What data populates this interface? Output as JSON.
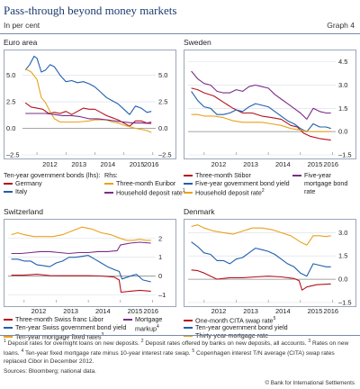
{
  "header": {
    "title": "Pass-through beyond money markets",
    "subtitle": "In per cent",
    "graph_no": "Graph 4"
  },
  "chart_data": [
    {
      "type": "line",
      "panel_title": "Euro area",
      "x_ticks": [
        "2012",
        "2013",
        "2014",
        "2015",
        "2016"
      ],
      "y_ticks_left": [
        "5.0",
        "2.5",
        "0.0",
        "–2.5"
      ],
      "y_ticks_right": [
        "5.0",
        "2.5",
        "0.0",
        "–2.5"
      ],
      "ylim": [
        -2.5,
        7
      ],
      "xlim": [
        2011.5,
        2016.1
      ],
      "legend_headers": [
        "Ten-year government bonds (lhs):",
        "Rhs:"
      ],
      "series": [
        {
          "name": "Germany",
          "color": "#b5121b",
          "x": [
            2011.6,
            2011.8,
            2012.0,
            2012.2,
            2012.4,
            2012.6,
            2012.8,
            2013.0,
            2013.2,
            2013.4,
            2013.6,
            2013.8,
            2014.0,
            2014.2,
            2014.4,
            2014.6,
            2014.8,
            2015.0,
            2015.2,
            2015.4,
            2015.6,
            2015.8,
            2015.95
          ],
          "values": [
            2.4,
            2.0,
            1.9,
            1.8,
            1.4,
            1.5,
            1.4,
            1.6,
            1.3,
            1.6,
            1.9,
            1.8,
            1.8,
            1.5,
            1.2,
            1.0,
            0.8,
            0.5,
            0.2,
            0.7,
            0.7,
            0.5,
            0.6
          ]
        },
        {
          "name": "Italy",
          "color": "#1f5fae",
          "x": [
            2011.6,
            2011.75,
            2011.9,
            2012.0,
            2012.15,
            2012.3,
            2012.45,
            2012.6,
            2012.8,
            2013.0,
            2013.2,
            2013.4,
            2013.6,
            2013.8,
            2014.0,
            2014.2,
            2014.4,
            2014.6,
            2014.8,
            2015.0,
            2015.2,
            2015.4,
            2015.6,
            2015.8,
            2015.95
          ],
          "values": [
            5.5,
            6.0,
            6.8,
            6.6,
            5.3,
            5.5,
            6.0,
            5.8,
            5.0,
            4.4,
            4.5,
            4.3,
            4.4,
            4.2,
            3.9,
            3.4,
            2.9,
            2.6,
            2.3,
            1.8,
            1.3,
            2.1,
            1.9,
            1.5,
            1.6
          ]
        },
        {
          "name": "Three-month Euribor",
          "color": "#e8a21c",
          "x": [
            2011.6,
            2011.8,
            2012.0,
            2012.15,
            2012.3,
            2012.45,
            2012.6,
            2012.8,
            2013.0,
            2013.4,
            2013.8,
            2014.0,
            2014.4,
            2014.6,
            2014.8,
            2015.0,
            2015.4,
            2015.8,
            2015.95
          ],
          "values": [
            5.6,
            5.3,
            4.6,
            2.9,
            2.4,
            1.6,
            0.9,
            0.6,
            0.6,
            0.6,
            0.7,
            0.8,
            0.8,
            0.6,
            0.5,
            0.3,
            0.0,
            -0.2,
            -0.4
          ]
        },
        {
          "name": "Household deposit rate",
          "note_ref": "1",
          "color": "#7a2d86",
          "x": [
            2011.6,
            2011.8,
            2012.0,
            2012.3,
            2012.6,
            2012.9,
            2013.2,
            2013.5,
            2013.8,
            2014.1,
            2014.4,
            2014.7,
            2015.0,
            2015.3,
            2015.6,
            2015.95
          ],
          "values": [
            1.4,
            1.4,
            1.4,
            1.4,
            1.3,
            1.2,
            1.2,
            1.1,
            0.9,
            0.9,
            0.8,
            0.7,
            0.6,
            0.5,
            0.5,
            0.45
          ]
        }
      ]
    },
    {
      "type": "line",
      "panel_title": "Sweden",
      "x_ticks": [
        "2012",
        "2013",
        "2014",
        "2015",
        "2016"
      ],
      "y_ticks_right": [
        "4.5",
        "3.0",
        "1.5",
        "0.0",
        "–1.5"
      ],
      "ylim": [
        -1.5,
        5
      ],
      "xlim": [
        2011.5,
        2016.1
      ],
      "series": [
        {
          "name": "Three-month Stibor",
          "color": "#b5121b",
          "x": [
            2011.6,
            2011.8,
            2012.0,
            2012.3,
            2012.6,
            2012.9,
            2013.2,
            2013.5,
            2013.8,
            2014.1,
            2014.4,
            2014.7,
            2014.9,
            2015.1,
            2015.3,
            2015.6,
            2015.95
          ],
          "values": [
            2.8,
            2.7,
            2.5,
            2.3,
            1.9,
            1.5,
            1.2,
            1.2,
            1.0,
            0.9,
            0.8,
            0.4,
            0.3,
            -0.1,
            -0.3,
            -0.45,
            -0.55
          ]
        },
        {
          "name": "Five-year government bond yield",
          "color": "#1f5fae",
          "x": [
            2011.6,
            2011.8,
            2012.0,
            2012.2,
            2012.4,
            2012.6,
            2012.8,
            2013.0,
            2013.2,
            2013.4,
            2013.6,
            2013.8,
            2014.0,
            2014.2,
            2014.4,
            2014.6,
            2014.8,
            2015.0,
            2015.2,
            2015.4,
            2015.6,
            2015.8,
            2015.95
          ],
          "values": [
            2.6,
            2.0,
            1.6,
            1.5,
            1.1,
            1.1,
            1.2,
            1.4,
            1.3,
            1.6,
            1.8,
            1.7,
            1.6,
            1.3,
            1.0,
            0.7,
            0.5,
            0.2,
            0.0,
            0.5,
            0.3,
            0.3,
            0.2
          ]
        },
        {
          "name": "Household deposit rate",
          "note_ref": "2",
          "color": "#e8a21c",
          "x": [
            2011.6,
            2011.8,
            2012.0,
            2012.3,
            2012.6,
            2012.9,
            2013.2,
            2013.5,
            2013.8,
            2014.1,
            2014.4,
            2014.7,
            2015.0,
            2015.3,
            2015.6,
            2015.95
          ],
          "values": [
            1.1,
            1.1,
            1.0,
            1.0,
            0.9,
            0.7,
            0.6,
            0.6,
            0.6,
            0.5,
            0.4,
            0.2,
            0.1,
            0.0,
            0.0,
            0.0
          ]
        },
        {
          "name": "Five-year mortgage bond rate",
          "color": "#7a2d86",
          "x": [
            2011.6,
            2011.8,
            2012.0,
            2012.2,
            2012.4,
            2012.6,
            2012.8,
            2013.0,
            2013.2,
            2013.4,
            2013.6,
            2013.8,
            2014.0,
            2014.2,
            2014.4,
            2014.6,
            2014.8,
            2015.0,
            2015.2,
            2015.4,
            2015.6,
            2015.8,
            2015.95
          ],
          "values": [
            3.9,
            3.4,
            3.1,
            3.0,
            2.6,
            2.5,
            2.5,
            2.7,
            2.6,
            2.9,
            3.0,
            2.9,
            2.8,
            2.4,
            2.1,
            1.8,
            1.5,
            1.2,
            0.8,
            1.5,
            1.3,
            1.2,
            1.2
          ]
        }
      ]
    },
    {
      "type": "line",
      "panel_title": "Switzerland",
      "x_ticks": [
        "2012",
        "2013",
        "2014",
        "2015",
        "2016"
      ],
      "y_ticks_right": [
        "2",
        "1",
        "0",
        "–1"
      ],
      "ylim": [
        -1.4,
        2.8
      ],
      "xlim": [
        2011.5,
        2016.1
      ],
      "series": [
        {
          "name": "Three-month Swiss franc Libor",
          "color": "#b5121b",
          "x": [
            2011.6,
            2011.8,
            2012.0,
            2012.4,
            2012.8,
            2013.2,
            2013.6,
            2014.0,
            2014.4,
            2014.8,
            2014.96,
            2015.02,
            2015.3,
            2015.6,
            2015.95
          ],
          "values": [
            0.05,
            0.05,
            0.05,
            0.1,
            0.03,
            0.02,
            0.02,
            0.02,
            0.01,
            -0.05,
            -0.2,
            -0.85,
            -0.8,
            -0.75,
            -0.8
          ]
        },
        {
          "name": "Ten-year Swiss government bond yield",
          "color": "#1f5fae",
          "x": [
            2011.6,
            2011.8,
            2012.0,
            2012.2,
            2012.4,
            2012.6,
            2012.8,
            2013.0,
            2013.2,
            2013.4,
            2013.6,
            2013.8,
            2014.0,
            2014.2,
            2014.4,
            2014.6,
            2014.8,
            2014.96,
            2015.05,
            2015.3,
            2015.5,
            2015.7,
            2015.95
          ],
          "values": [
            0.9,
            0.9,
            0.8,
            0.8,
            0.6,
            0.55,
            0.5,
            0.7,
            0.8,
            1.0,
            1.0,
            1.05,
            1.1,
            0.9,
            0.7,
            0.5,
            0.35,
            0.25,
            -0.15,
            0.0,
            0.1,
            -0.2,
            -0.3
          ]
        },
        {
          "name": "Ten-year mortgage fixed rates",
          "note_ref": "3",
          "color": "#e8a21c",
          "x": [
            2011.6,
            2011.8,
            2012.0,
            2012.3,
            2012.6,
            2012.9,
            2013.2,
            2013.5,
            2013.8,
            2014.1,
            2014.4,
            2014.7,
            2015.0,
            2015.2,
            2015.4,
            2015.6,
            2015.8,
            2015.95
          ],
          "values": [
            2.2,
            2.3,
            2.2,
            2.1,
            2.1,
            2.1,
            2.2,
            2.4,
            2.6,
            2.5,
            2.3,
            2.2,
            2.0,
            1.9,
            1.9,
            1.95,
            1.9,
            1.9
          ]
        },
        {
          "name": "Mortgage markup",
          "note_ref": "4",
          "color": "#7a2d86",
          "x": [
            2011.6,
            2011.9,
            2012.2,
            2012.5,
            2012.8,
            2013.1,
            2013.4,
            2013.7,
            2014.0,
            2014.3,
            2014.6,
            2014.9,
            2015.0,
            2015.3,
            2015.6,
            2015.95
          ],
          "values": [
            1.2,
            1.2,
            1.25,
            1.3,
            1.3,
            1.25,
            1.2,
            1.25,
            1.25,
            1.3,
            1.3,
            1.35,
            1.65,
            1.75,
            1.8,
            1.75
          ]
        }
      ]
    },
    {
      "type": "line",
      "panel_title": "Denmark",
      "x_ticks": [
        "2012",
        "2013",
        "2014",
        "2015",
        "2016"
      ],
      "y_ticks_right": [
        "3.0",
        "1.5",
        "0.0",
        "–1.5"
      ],
      "ylim": [
        -1.5,
        3.6
      ],
      "xlim": [
        2011.5,
        2016.1
      ],
      "series": [
        {
          "name": "One-month CITA swap rate",
          "note_ref": "5",
          "color": "#b5121b",
          "x": [
            2011.6,
            2011.8,
            2012.0,
            2012.4,
            2012.8,
            2013.2,
            2013.6,
            2014.0,
            2014.4,
            2014.8,
            2014.96,
            2015.05,
            2015.2,
            2015.5,
            2015.95
          ],
          "values": [
            0.6,
            0.55,
            0.4,
            0.0,
            0.1,
            0.1,
            0.15,
            0.2,
            0.15,
            0.05,
            -0.1,
            -0.7,
            -0.5,
            -0.35,
            -0.3
          ]
        },
        {
          "name": "Ten-year government bond yield",
          "color": "#1f5fae",
          "x": [
            2011.6,
            2011.8,
            2012.0,
            2012.2,
            2012.4,
            2012.6,
            2012.8,
            2013.0,
            2013.2,
            2013.4,
            2013.6,
            2013.8,
            2014.0,
            2014.2,
            2014.4,
            2014.6,
            2014.8,
            2015.0,
            2015.2,
            2015.4,
            2015.6,
            2015.8,
            2015.95
          ],
          "values": [
            2.4,
            2.1,
            1.7,
            1.6,
            1.2,
            1.2,
            1.0,
            1.3,
            1.4,
            1.7,
            2.0,
            1.9,
            1.8,
            1.6,
            1.3,
            1.0,
            0.8,
            0.4,
            0.2,
            1.0,
            0.9,
            0.8,
            0.8
          ]
        },
        {
          "name": "Thirty-year mortgage rate",
          "color": "#e8a21c",
          "x": [
            2011.6,
            2011.8,
            2012.0,
            2012.3,
            2012.6,
            2012.9,
            2013.2,
            2013.5,
            2013.8,
            2014.1,
            2014.4,
            2014.7,
            2015.0,
            2015.2,
            2015.4,
            2015.6,
            2015.8,
            2015.95
          ],
          "values": [
            3.4,
            3.5,
            3.3,
            3.1,
            3.0,
            2.9,
            3.1,
            3.3,
            3.3,
            3.2,
            3.0,
            2.8,
            2.4,
            2.2,
            2.8,
            2.8,
            2.75,
            2.8
          ]
        }
      ]
    }
  ],
  "footnotes": {
    "line1": "Deposit rates for overnight loans on new deposits.",
    "line2": "Deposit rates offered by banks on new deposits, all accounts.",
    "line3": "Rates on new loans.",
    "line4": "Ten-year fixed mortgage rate minus 10-year interest rate swap.",
    "line5": "Copenhagen interest T/N average (CITA) swap rates replaced Cibor in December 2012.",
    "sources": "Sources: Bloomberg; national data.",
    "copyright": "© Bank for International Settlements"
  }
}
